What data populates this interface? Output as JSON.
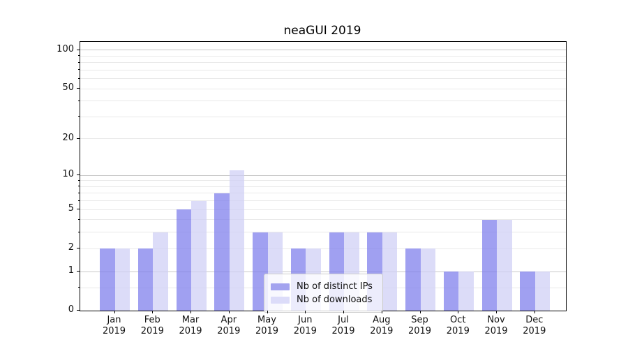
{
  "chart_data": {
    "type": "bar",
    "title": "neaGUI 2019",
    "categories": [
      "Jan",
      "Feb",
      "Mar",
      "Apr",
      "May",
      "Jun",
      "Jul",
      "Aug",
      "Sep",
      "Oct",
      "Nov",
      "Dec"
    ],
    "x_tick_second_line": "2019",
    "series": [
      {
        "name": "Nb of distinct IPs",
        "color": "rgba(120,120,235,0.7)",
        "legend_color": "#a3a3ef",
        "values": [
          2,
          2,
          5,
          7,
          3,
          2,
          3,
          3,
          2,
          1,
          4,
          1
        ]
      },
      {
        "name": "Nb of downloads",
        "color": "rgba(205,205,245,0.7)",
        "legend_color": "#dcdcf9",
        "values": [
          2,
          3,
          6,
          11,
          3,
          2,
          3,
          3,
          2,
          1,
          4,
          1
        ]
      }
    ],
    "yscale": "log1p",
    "ylim": [
      0,
      116
    ],
    "ytick_labels": [
      0,
      1,
      2,
      5,
      10,
      20,
      50,
      100
    ],
    "major_gridlines": [
      1,
      10,
      100
    ],
    "minor_gridlines": [
      0.5,
      2,
      3,
      4,
      5,
      6,
      7,
      8,
      9,
      20,
      30,
      40,
      50,
      60,
      70,
      80,
      90
    ],
    "grid": true,
    "legend_position": "lower center",
    "xlabel": "",
    "ylabel": ""
  },
  "colors": {
    "grid_major": "#c8c8c8",
    "grid_minor": "#e9e9e9",
    "spine": "#000000",
    "text": "#111111",
    "background": "#ffffff"
  }
}
